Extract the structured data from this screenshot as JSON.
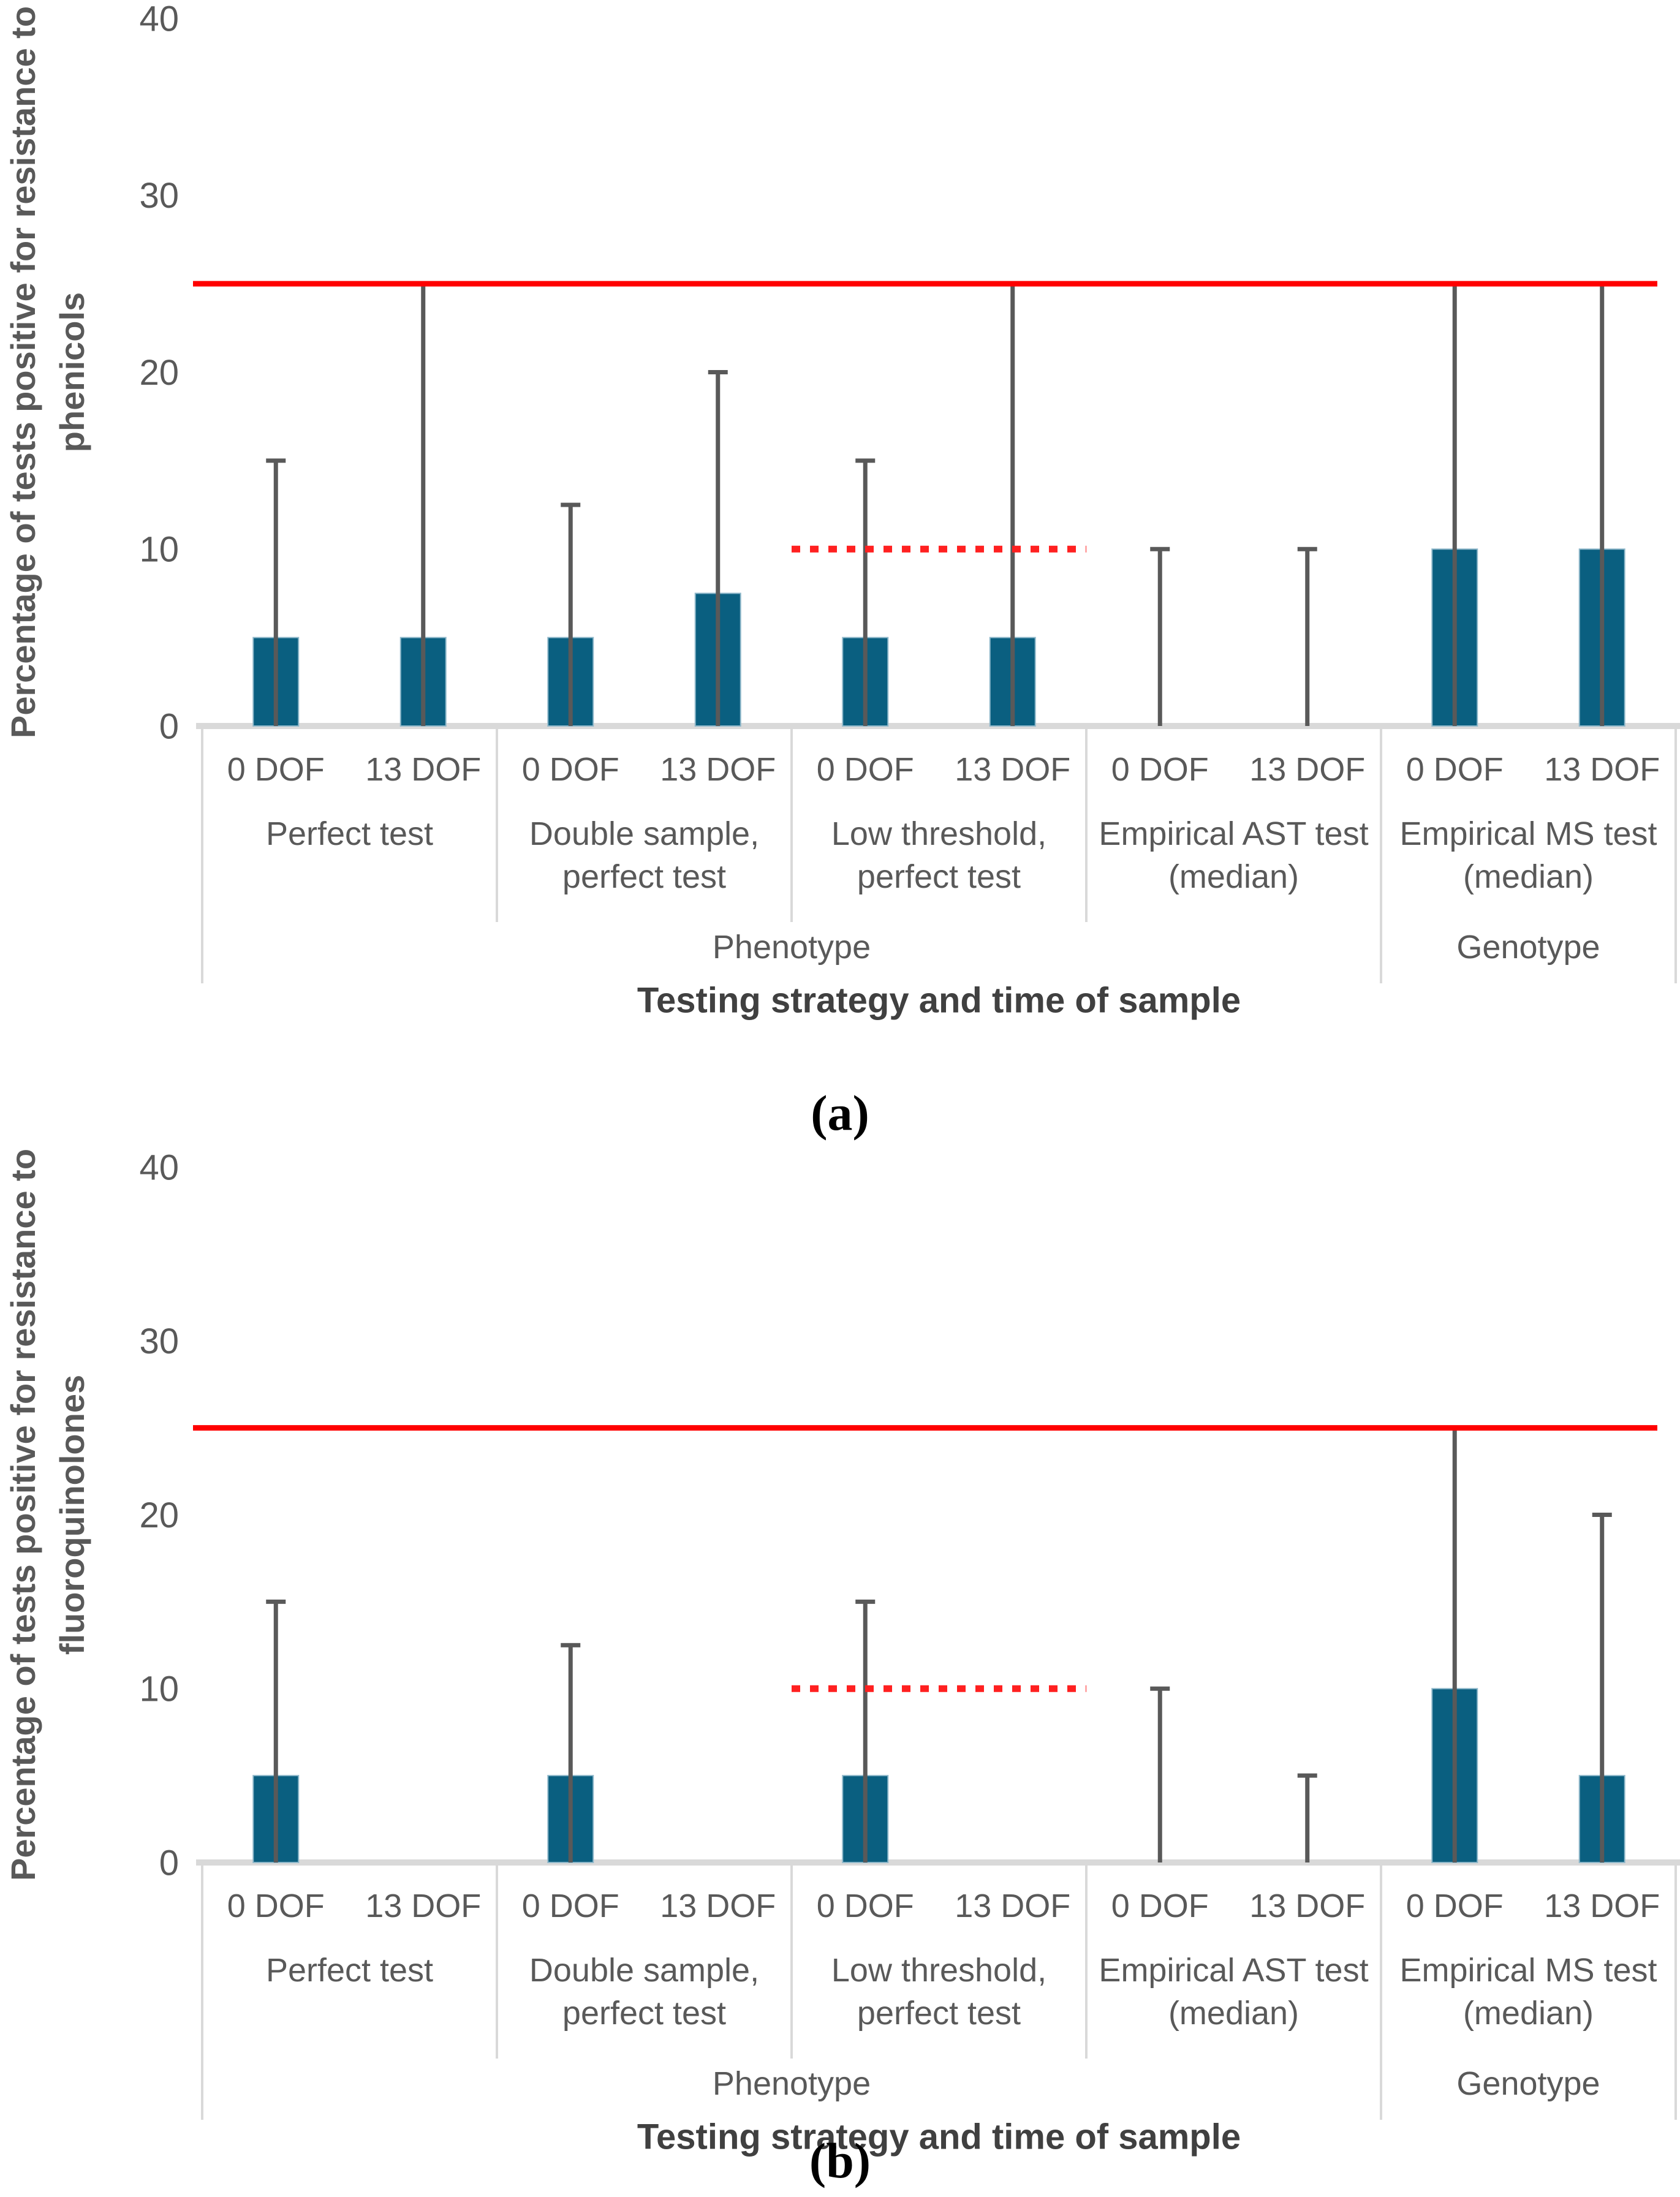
{
  "colors": {
    "bar_fill": "#0a5f80",
    "bar_edge": "#8fb8ca",
    "error_bar": "#595959",
    "red_solid_line": "#ff0000",
    "red_dotted_line": "#ff2020",
    "axis_gray": "#d9d9d9",
    "tick_text": "#595959",
    "label_text": "#595959",
    "title_text": "#404040",
    "panel_text": "#000000"
  },
  "chart_data": [
    {
      "type": "bar",
      "panel_label": "(a)",
      "ylabel_lines": [
        "Percentage of tests positive for resistance to",
        "phenicols"
      ],
      "xlabel": "Testing strategy and time of sample",
      "ylim": [
        0,
        40
      ],
      "yticks": [
        0,
        10,
        20,
        30,
        40
      ],
      "grid": "off",
      "legend": "none",
      "categories_time": [
        "0 DOF",
        "13 DOF"
      ],
      "reference_lines": {
        "solid_red": 25,
        "dotted_red": 10,
        "dotted_span_groups": [
          2,
          2
        ]
      },
      "groups": [
        {
          "label_lines": [
            "Perfect test"
          ],
          "values": [
            5,
            5
          ],
          "error_tops": [
            15,
            25
          ]
        },
        {
          "label_lines": [
            "Double sample,",
            "perfect test"
          ],
          "values": [
            5,
            7.5
          ],
          "error_tops": [
            12.5,
            20
          ]
        },
        {
          "label_lines": [
            "Low threshold,",
            "perfect test"
          ],
          "values": [
            5,
            5
          ],
          "error_tops": [
            15,
            25
          ]
        },
        {
          "label_lines": [
            "Empirical AST test",
            "(median)"
          ],
          "values": [
            0,
            0
          ],
          "error_tops": [
            10,
            10
          ]
        },
        {
          "label_lines": [
            "Empirical MS test",
            "(median)"
          ],
          "values": [
            10,
            10
          ],
          "error_tops": [
            25,
            25
          ]
        }
      ],
      "supergroups": [
        {
          "label": "Phenotype",
          "from_group": 0,
          "to_group": 3
        },
        {
          "label": "Genotype",
          "from_group": 4,
          "to_group": 4
        }
      ]
    },
    {
      "type": "bar",
      "panel_label": "(b)",
      "ylabel_lines": [
        "Percentage of tests positive for resistance to",
        "fluoroquinolones"
      ],
      "xlabel": "Testing strategy and time of sample",
      "ylim": [
        0,
        40
      ],
      "yticks": [
        0,
        10,
        20,
        30,
        40
      ],
      "grid": "off",
      "legend": "none",
      "categories_time": [
        "0 DOF",
        "13 DOF"
      ],
      "reference_lines": {
        "solid_red": 25,
        "dotted_red": 10,
        "dotted_span_groups": [
          2,
          2
        ]
      },
      "groups": [
        {
          "label_lines": [
            "Perfect test"
          ],
          "values": [
            5,
            0
          ],
          "error_tops": [
            15,
            null
          ]
        },
        {
          "label_lines": [
            "Double sample,",
            "perfect test"
          ],
          "values": [
            5,
            0
          ],
          "error_tops": [
            12.5,
            null
          ]
        },
        {
          "label_lines": [
            "Low threshold,",
            "perfect test"
          ],
          "values": [
            5,
            0
          ],
          "error_tops": [
            15,
            null
          ]
        },
        {
          "label_lines": [
            "Empirical AST test",
            "(median)"
          ],
          "values": [
            0,
            0
          ],
          "error_tops": [
            10,
            5
          ]
        },
        {
          "label_lines": [
            "Empirical MS test",
            "(median)"
          ],
          "values": [
            10,
            5
          ],
          "error_tops": [
            25,
            20
          ]
        }
      ],
      "supergroups": [
        {
          "label": "Phenotype",
          "from_group": 0,
          "to_group": 3
        },
        {
          "label": "Genotype",
          "from_group": 4,
          "to_group": 4
        }
      ]
    }
  ]
}
